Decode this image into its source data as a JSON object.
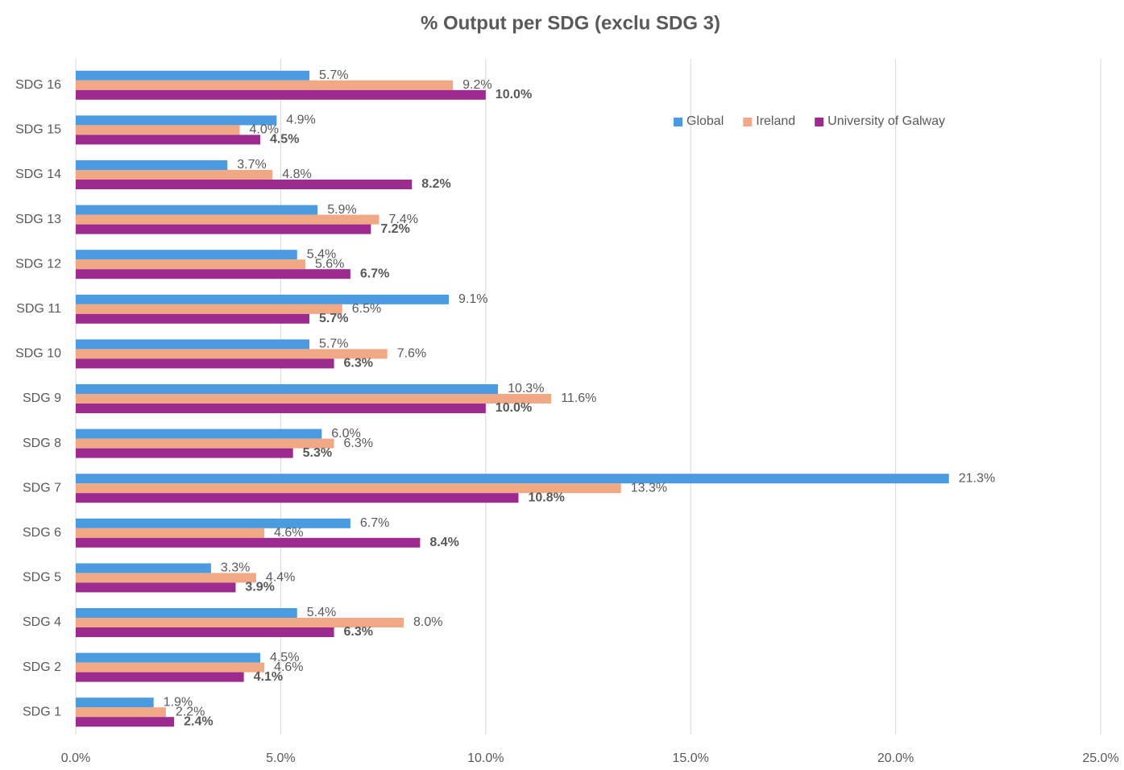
{
  "chart_data": {
    "type": "hbar",
    "title": "% Output per SDG (exclu SDG 3)",
    "categories": [
      "SDG 16",
      "SDG 15",
      "SDG 14",
      "SDG 13",
      "SDG 12",
      "SDG 11",
      "SDG 10",
      "SDG 9",
      "SDG 8",
      "SDG 7",
      "SDG 6",
      "SDG 5",
      "SDG 4",
      "SDG 2",
      "SDG 1"
    ],
    "series": [
      {
        "name": "Global",
        "color": "#4a9be0",
        "values": [
          5.7,
          4.9,
          3.7,
          5.9,
          5.4,
          9.1,
          5.7,
          10.3,
          6.0,
          21.3,
          6.7,
          3.3,
          5.4,
          4.5,
          1.9
        ],
        "value_labels": [
          "5.7%",
          "4.9%",
          "3.7%",
          "5.9%",
          "5.4%",
          "9.1%",
          "5.7%",
          "10.3%",
          "6.0%",
          "21.3%",
          "6.7%",
          "3.3%",
          "5.4%",
          "4.5%",
          "1.9%"
        ]
      },
      {
        "name": "Ireland",
        "color": "#f0a984",
        "values": [
          9.2,
          4.0,
          4.8,
          7.4,
          5.6,
          6.5,
          7.6,
          11.6,
          6.3,
          13.3,
          4.6,
          4.4,
          8.0,
          4.6,
          2.2
        ],
        "value_labels": [
          "9.2%",
          "4.0%",
          "4.8%",
          "7.4%",
          "5.6%",
          "6.5%",
          "7.6%",
          "11.6%",
          "6.3%",
          "13.3%",
          "4.6%",
          "4.4%",
          "8.0%",
          "4.6%",
          "2.2%"
        ]
      },
      {
        "name": "University of Galway",
        "color": "#9c2a8f",
        "values": [
          10.0,
          4.5,
          8.2,
          7.2,
          6.7,
          5.7,
          6.3,
          10.0,
          5.3,
          10.8,
          8.4,
          3.9,
          6.3,
          4.1,
          2.4
        ],
        "value_labels": [
          "10.0%",
          "4.5%",
          "8.2%",
          "7.2%",
          "6.7%",
          "5.7%",
          "6.3%",
          "10.0%",
          "5.3%",
          "10.8%",
          "8.4%",
          "3.9%",
          "6.3%",
          "4.1%",
          "2.4%"
        ]
      }
    ],
    "xlim": [
      0,
      25
    ],
    "xticks": [
      {
        "value": 0,
        "label": "0.0%"
      },
      {
        "value": 5,
        "label": "5.0%"
      },
      {
        "value": 10,
        "label": "10.0%"
      },
      {
        "value": 15,
        "label": "15.0%"
      },
      {
        "value": 20,
        "label": "20.0%"
      },
      {
        "value": 25,
        "label": "25.0%"
      }
    ],
    "grid": true
  }
}
